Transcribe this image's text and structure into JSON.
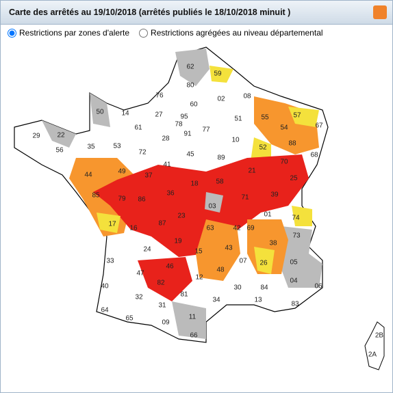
{
  "header": {
    "title": "Carte des arrêtés au 19/10/2018 (arrêtés publiés le 18/10/2018 minuit )"
  },
  "options": [
    "Restrictions par zones d'alerte",
    "Restrictions agrégées au niveau départemental"
  ],
  "departments": [
    "62",
    "59",
    "80",
    "76",
    "02",
    "08",
    "50",
    "14",
    "27",
    "60",
    "95",
    "51",
    "55",
    "57",
    "54",
    "67",
    "29",
    "22",
    "61",
    "78",
    "77",
    "91",
    "28",
    "10",
    "52",
    "88",
    "68",
    "56",
    "35",
    "53",
    "72",
    "45",
    "89",
    "21",
    "70",
    "25",
    "44",
    "49",
    "37",
    "41",
    "18",
    "58",
    "39",
    "71",
    "85",
    "79",
    "86",
    "36",
    "03",
    "01",
    "74",
    "17",
    "16",
    "87",
    "23",
    "63",
    "42",
    "69",
    "73",
    "38",
    "19",
    "15",
    "43",
    "24",
    "33",
    "07",
    "26",
    "05",
    "46",
    "48",
    "47",
    "82",
    "12",
    "04",
    "06",
    "40",
    "30",
    "84",
    "81",
    "13",
    "83",
    "32",
    "34",
    "31",
    "64",
    "65",
    "09",
    "11",
    "66",
    "2B",
    "2A"
  ]
}
